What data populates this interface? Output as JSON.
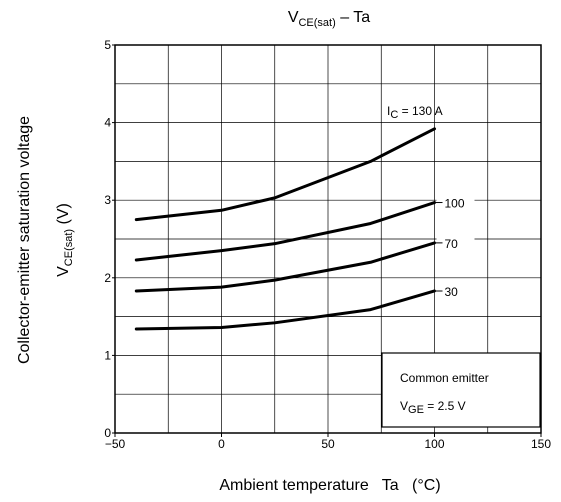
{
  "chart_data": {
    "type": "line",
    "title": {
      "main": "V",
      "sub": "CE(sat)",
      "suffix": " – Ta"
    },
    "xlabel": "Ambient temperature   Ta   (°C)",
    "ylabel": {
      "line1": "Collector-emitter saturation voltage",
      "line2_main": "V",
      "line2_sub": "CE(sat)",
      "line2_suffix": "   (V)"
    },
    "xlim": [
      -50,
      150
    ],
    "ylim": [
      0,
      5
    ],
    "x_ticks": [
      "−50",
      "0",
      "50",
      "100",
      "150"
    ],
    "y_ticks": [
      "0",
      "1",
      "2",
      "3",
      "4",
      "5"
    ],
    "x_tick_values": [
      -50,
      0,
      50,
      100,
      150
    ],
    "y_tick_values": [
      0,
      1,
      2,
      3,
      4,
      5
    ],
    "x_grid_values": [
      -50,
      -25,
      0,
      25,
      50,
      75,
      100,
      125,
      150
    ],
    "y_grid_values": [
      0,
      0.5,
      1,
      1.5,
      2,
      2.5,
      3,
      3.5,
      4,
      4.5,
      5
    ],
    "grid": true,
    "series": [
      {
        "name": "I",
        "name_sub": "C",
        "name_suffix": " = 130 A",
        "x": [
          -40,
          0,
          25,
          70,
          100
        ],
        "y": [
          2.75,
          2.87,
          3.03,
          3.5,
          3.92
        ]
      },
      {
        "name": "100",
        "x": [
          -40,
          0,
          25,
          70,
          100
        ],
        "y": [
          2.23,
          2.35,
          2.44,
          2.7,
          2.97
        ]
      },
      {
        "name": "70",
        "x": [
          -40,
          0,
          25,
          70,
          100
        ],
        "y": [
          1.83,
          1.88,
          1.97,
          2.2,
          2.45
        ]
      },
      {
        "name": "30",
        "x": [
          -40,
          0,
          25,
          70,
          100
        ],
        "y": [
          1.34,
          1.36,
          1.42,
          1.59,
          1.83
        ]
      }
    ],
    "annotation": {
      "line1": "Common emitter",
      "line2_main": "V",
      "line2_sub": "GE",
      "line2_suffix": " = 2.5 V"
    }
  }
}
